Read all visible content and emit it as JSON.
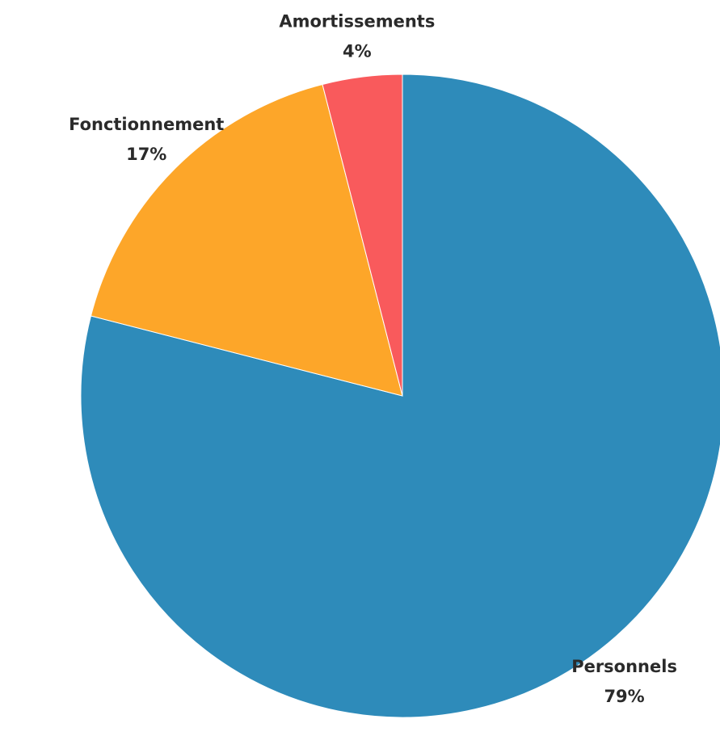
{
  "chart_data": {
    "type": "pie",
    "categories": [
      "Personnels",
      "Fonctionnement",
      "Amortissements"
    ],
    "values": [
      79,
      17,
      4
    ],
    "value_labels": [
      "79%",
      "17%",
      "4%"
    ],
    "colors": [
      "#2e8bba",
      "#fda629",
      "#f95a5c"
    ]
  }
}
